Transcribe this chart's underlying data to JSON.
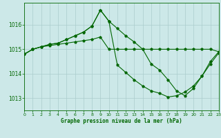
{
  "title": "Graphe pression niveau de la mer (hPa)",
  "background_color": "#cce8e8",
  "grid_color": "#aacccc",
  "line_color": "#006600",
  "xlim": [
    0,
    23
  ],
  "ylim": [
    1012.5,
    1016.9
  ],
  "yticks": [
    1013,
    1014,
    1015,
    1016
  ],
  "xticks": [
    0,
    1,
    2,
    3,
    4,
    5,
    6,
    7,
    8,
    9,
    10,
    11,
    12,
    13,
    14,
    15,
    16,
    17,
    18,
    19,
    20,
    21,
    22,
    23
  ],
  "series1_x": [
    0,
    1,
    2,
    3,
    4,
    5,
    6,
    7,
    8,
    9,
    10,
    11,
    12,
    13,
    14,
    15,
    16,
    17,
    18,
    19,
    20,
    21,
    22,
    23
  ],
  "series1_y": [
    1014.8,
    1015.0,
    1015.1,
    1015.15,
    1015.2,
    1015.25,
    1015.3,
    1015.35,
    1015.4,
    1015.5,
    1015.0,
    1015.0,
    1015.0,
    1015.0,
    1015.0,
    1015.0,
    1015.0,
    1015.0,
    1015.0,
    1015.0,
    1015.0,
    1015.0,
    1015.0,
    1014.9
  ],
  "series2_x": [
    0,
    1,
    2,
    3,
    4,
    5,
    6,
    7,
    8,
    9,
    10,
    11,
    12,
    13,
    14,
    15,
    16,
    17,
    18,
    19,
    20,
    21,
    22,
    23
  ],
  "series2_y": [
    1014.8,
    1015.0,
    1015.1,
    1015.2,
    1015.25,
    1015.4,
    1015.55,
    1015.7,
    1015.95,
    1016.6,
    1016.15,
    1015.85,
    1015.55,
    1015.3,
    1015.0,
    1014.4,
    1014.15,
    1013.75,
    1013.3,
    1013.1,
    1013.4,
    1013.9,
    1014.5,
    1014.9
  ],
  "series3_x": [
    0,
    1,
    2,
    3,
    4,
    5,
    6,
    7,
    8,
    9,
    10,
    11,
    12,
    13,
    14,
    15,
    16,
    17,
    18,
    19,
    20,
    21,
    22,
    23
  ],
  "series3_y": [
    1014.8,
    1015.0,
    1015.1,
    1015.2,
    1015.25,
    1015.4,
    1015.55,
    1015.7,
    1015.95,
    1016.6,
    1016.15,
    1014.35,
    1014.05,
    1013.75,
    1013.5,
    1013.3,
    1013.2,
    1013.05,
    1013.1,
    1013.25,
    1013.5,
    1013.9,
    1014.4,
    1014.85
  ]
}
